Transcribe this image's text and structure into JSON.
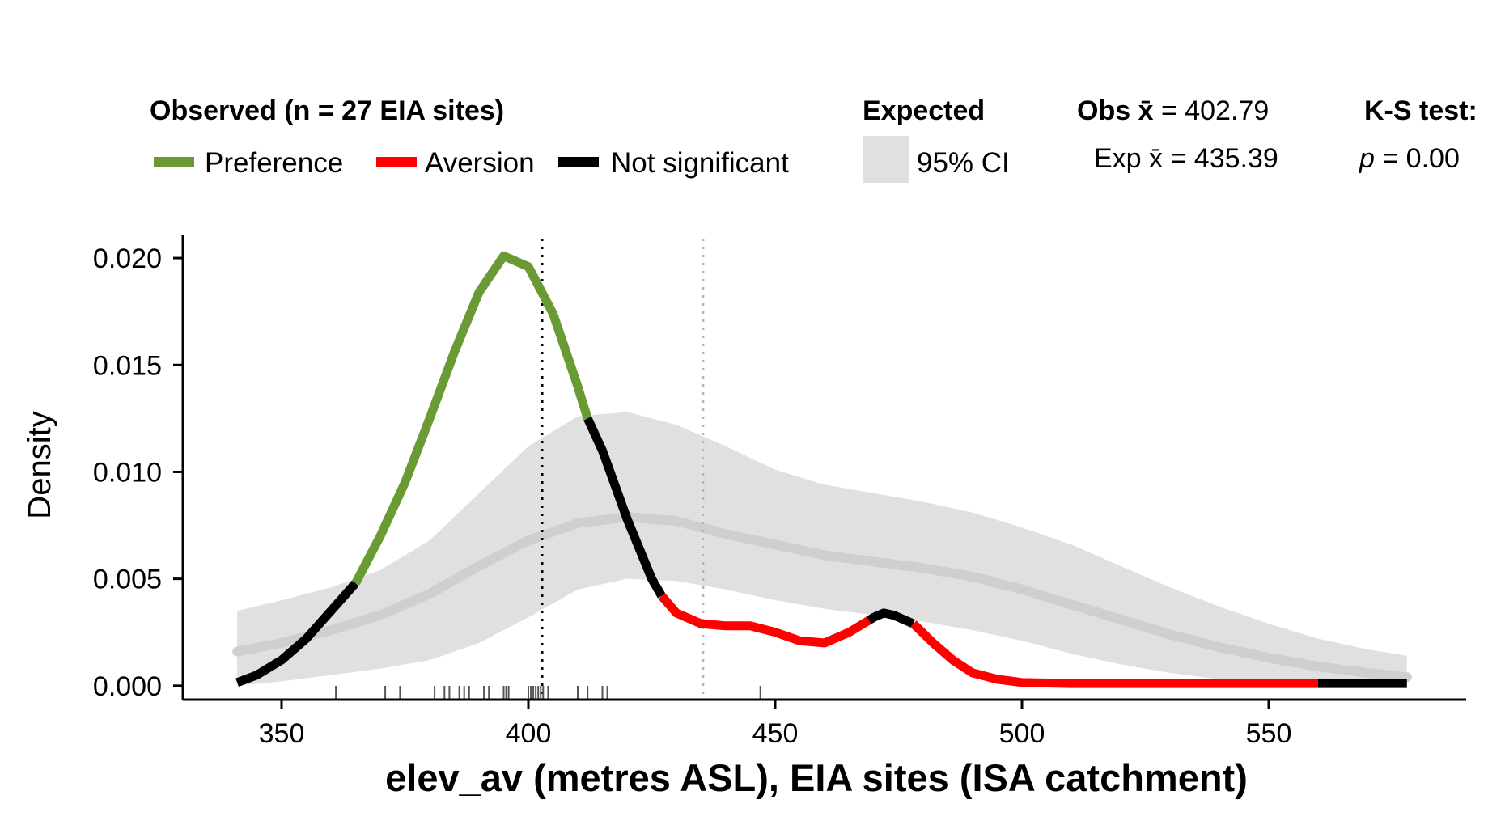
{
  "legend": {
    "observed_title": "Observed (n = 27 EIA sites)",
    "items": [
      {
        "label": "Preference",
        "color": "#6a9a33"
      },
      {
        "label": "Aversion",
        "color": "#ff0000"
      },
      {
        "label": "Not significant",
        "color": "#000000"
      }
    ],
    "expected_title": "Expected",
    "ci_label": "95% CI",
    "ci_color": "#e0e0e0",
    "obs_mean_prefix": "Obs x̄",
    "obs_mean_value": "= 402.79",
    "exp_mean_prefix": "Exp x̄",
    "exp_mean_value": "= 435.39",
    "ks_title": "K-S test:",
    "ks_p_symbol": "p",
    "ks_p_value": "= 0.00"
  },
  "chart_data": {
    "type": "line",
    "xlabel": "elev_av (metres ASL), EIA sites (ISA catchment)",
    "ylabel": "Density",
    "xlim": [
      330,
      590
    ],
    "ylim": [
      -0.00065,
      0.0211
    ],
    "x_ticks": [
      350,
      400,
      450,
      500,
      550
    ],
    "y_ticks": [
      0.0,
      0.005,
      0.01,
      0.015,
      0.02
    ],
    "y_tick_labels": [
      "0.000",
      "0.005",
      "0.010",
      "0.015",
      "0.020"
    ],
    "observed_mean": 402.79,
    "expected_mean": 435.39,
    "observed_density": [
      {
        "x": 341,
        "y": 0.00015
      },
      {
        "x": 345,
        "y": 0.0005
      },
      {
        "x": 350,
        "y": 0.0012
      },
      {
        "x": 355,
        "y": 0.0022
      },
      {
        "x": 360,
        "y": 0.0035
      },
      {
        "x": 365,
        "y": 0.0048
      },
      {
        "x": 370,
        "y": 0.007
      },
      {
        "x": 375,
        "y": 0.0095
      },
      {
        "x": 380,
        "y": 0.0125
      },
      {
        "x": 385,
        "y": 0.0156
      },
      {
        "x": 390,
        "y": 0.0184
      },
      {
        "x": 395,
        "y": 0.0201
      },
      {
        "x": 400,
        "y": 0.0196
      },
      {
        "x": 405,
        "y": 0.0174
      },
      {
        "x": 410,
        "y": 0.014
      },
      {
        "x": 412,
        "y": 0.0125
      },
      {
        "x": 415,
        "y": 0.011
      },
      {
        "x": 420,
        "y": 0.0078
      },
      {
        "x": 425,
        "y": 0.005
      },
      {
        "x": 427,
        "y": 0.0042
      },
      {
        "x": 430,
        "y": 0.0034
      },
      {
        "x": 435,
        "y": 0.0029
      },
      {
        "x": 440,
        "y": 0.0028
      },
      {
        "x": 445,
        "y": 0.0028
      },
      {
        "x": 450,
        "y": 0.0025
      },
      {
        "x": 455,
        "y": 0.0021
      },
      {
        "x": 460,
        "y": 0.002
      },
      {
        "x": 465,
        "y": 0.0025
      },
      {
        "x": 470,
        "y": 0.0032
      },
      {
        "x": 472,
        "y": 0.0034
      },
      {
        "x": 474,
        "y": 0.0033
      },
      {
        "x": 478,
        "y": 0.0029
      },
      {
        "x": 482,
        "y": 0.002
      },
      {
        "x": 486,
        "y": 0.0012
      },
      {
        "x": 490,
        "y": 0.0006
      },
      {
        "x": 495,
        "y": 0.0003
      },
      {
        "x": 500,
        "y": 0.00015
      },
      {
        "x": 510,
        "y": 0.0001
      },
      {
        "x": 530,
        "y": 0.0001
      },
      {
        "x": 550,
        "y": 0.0001
      },
      {
        "x": 560,
        "y": 0.0001
      },
      {
        "x": 570,
        "y": 0.0001
      },
      {
        "x": 578,
        "y": 0.0001
      }
    ],
    "observed_segments": [
      {
        "from": 341,
        "to": 365,
        "status": "Not significant"
      },
      {
        "from": 365,
        "to": 412,
        "status": "Preference"
      },
      {
        "from": 412,
        "to": 427,
        "status": "Not significant"
      },
      {
        "from": 427,
        "to": 469,
        "status": "Aversion"
      },
      {
        "from": 469,
        "to": 478,
        "status": "Not significant"
      },
      {
        "from": 478,
        "to": 560,
        "status": "Aversion"
      },
      {
        "from": 560,
        "to": 578,
        "status": "Not significant"
      }
    ],
    "expected_density": [
      {
        "x": 341,
        "y": 0.0016,
        "lower": 0.0,
        "upper": 0.0035
      },
      {
        "x": 350,
        "y": 0.002,
        "lower": 0.0002,
        "upper": 0.004
      },
      {
        "x": 360,
        "y": 0.0026,
        "lower": 0.0005,
        "upper": 0.0046
      },
      {
        "x": 370,
        "y": 0.0033,
        "lower": 0.0008,
        "upper": 0.0054
      },
      {
        "x": 380,
        "y": 0.0043,
        "lower": 0.0012,
        "upper": 0.0068
      },
      {
        "x": 390,
        "y": 0.0056,
        "lower": 0.002,
        "upper": 0.009
      },
      {
        "x": 400,
        "y": 0.0068,
        "lower": 0.0032,
        "upper": 0.0112
      },
      {
        "x": 410,
        "y": 0.0076,
        "lower": 0.0045,
        "upper": 0.0126
      },
      {
        "x": 420,
        "y": 0.0079,
        "lower": 0.005,
        "upper": 0.0128
      },
      {
        "x": 430,
        "y": 0.0077,
        "lower": 0.0049,
        "upper": 0.0122
      },
      {
        "x": 440,
        "y": 0.0071,
        "lower": 0.0045,
        "upper": 0.0112
      },
      {
        "x": 450,
        "y": 0.0066,
        "lower": 0.004,
        "upper": 0.0101
      },
      {
        "x": 460,
        "y": 0.0061,
        "lower": 0.0036,
        "upper": 0.0094
      },
      {
        "x": 470,
        "y": 0.0058,
        "lower": 0.0033,
        "upper": 0.009
      },
      {
        "x": 480,
        "y": 0.0055,
        "lower": 0.003,
        "upper": 0.0086
      },
      {
        "x": 490,
        "y": 0.0051,
        "lower": 0.0026,
        "upper": 0.0081
      },
      {
        "x": 500,
        "y": 0.0045,
        "lower": 0.0021,
        "upper": 0.0074
      },
      {
        "x": 510,
        "y": 0.0038,
        "lower": 0.0015,
        "upper": 0.0066
      },
      {
        "x": 520,
        "y": 0.0031,
        "lower": 0.001,
        "upper": 0.0056
      },
      {
        "x": 530,
        "y": 0.0024,
        "lower": 0.0006,
        "upper": 0.0046
      },
      {
        "x": 540,
        "y": 0.0018,
        "lower": 0.0003,
        "upper": 0.0037
      },
      {
        "x": 550,
        "y": 0.0013,
        "lower": 0.0001,
        "upper": 0.0029
      },
      {
        "x": 560,
        "y": 0.0009,
        "lower": 0.0,
        "upper": 0.0022
      },
      {
        "x": 570,
        "y": 0.0006,
        "lower": 0.0,
        "upper": 0.0017
      },
      {
        "x": 578,
        "y": 0.0004,
        "lower": 0.0,
        "upper": 0.0014
      }
    ],
    "rug_sites": [
      361,
      371,
      374,
      381,
      383,
      384,
      386,
      387,
      388,
      391,
      392,
      395,
      395.5,
      396,
      400,
      400.5,
      401,
      401.5,
      402,
      402.5,
      403,
      404,
      410,
      412,
      415,
      416,
      447
    ]
  }
}
